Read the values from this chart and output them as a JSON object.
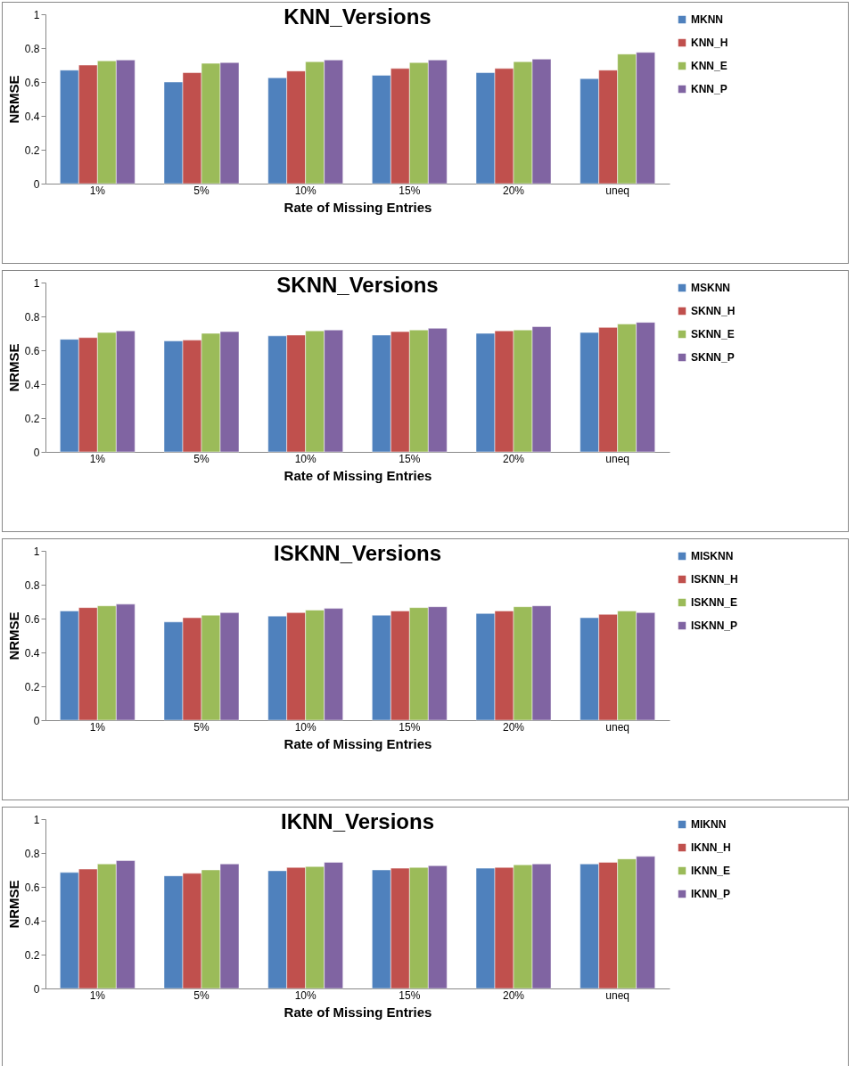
{
  "chart_data": [
    {
      "type": "bar",
      "title": "KNN_Versions",
      "xlabel": "Rate of Missing Entries",
      "ylabel": "NRMSE",
      "categories": [
        "1%",
        "5%",
        "10%",
        "15%",
        "20%",
        "uneq"
      ],
      "ylim": [
        0,
        1
      ],
      "yticks": [
        0,
        0.2,
        0.4,
        0.6,
        0.8,
        1
      ],
      "grid": false,
      "legend": "top right",
      "series": [
        {
          "name": "MKNN",
          "color": "#4f81bd",
          "values": [
            0.67,
            0.6,
            0.625,
            0.64,
            0.655,
            0.62
          ]
        },
        {
          "name": "KNN_H",
          "color": "#c0504d",
          "values": [
            0.7,
            0.655,
            0.665,
            0.68,
            0.68,
            0.67
          ]
        },
        {
          "name": "KNN_E",
          "color": "#9bbb59",
          "values": [
            0.725,
            0.71,
            0.72,
            0.715,
            0.72,
            0.765
          ]
        },
        {
          "name": "KNN_P",
          "color": "#8064a2",
          "values": [
            0.73,
            0.715,
            0.73,
            0.73,
            0.735,
            0.775
          ]
        }
      ]
    },
    {
      "type": "bar",
      "title": "SKNN_Versions",
      "xlabel": "Rate of Missing Entries",
      "ylabel": "NRMSE",
      "categories": [
        "1%",
        "5%",
        "10%",
        "15%",
        "20%",
        "uneq"
      ],
      "ylim": [
        0,
        1
      ],
      "yticks": [
        0,
        0.2,
        0.4,
        0.6,
        0.8,
        1
      ],
      "grid": false,
      "legend": "top right",
      "series": [
        {
          "name": "MSKNN",
          "color": "#4f81bd",
          "values": [
            0.665,
            0.655,
            0.685,
            0.69,
            0.7,
            0.705
          ]
        },
        {
          "name": "SKNN_H",
          "color": "#c0504d",
          "values": [
            0.675,
            0.66,
            0.69,
            0.71,
            0.715,
            0.735
          ]
        },
        {
          "name": "SKNN_E",
          "color": "#9bbb59",
          "values": [
            0.705,
            0.7,
            0.715,
            0.72,
            0.72,
            0.755
          ]
        },
        {
          "name": "SKNN_P",
          "color": "#8064a2",
          "values": [
            0.715,
            0.71,
            0.72,
            0.73,
            0.74,
            0.765
          ]
        }
      ]
    },
    {
      "type": "bar",
      "title": "ISKNN_Versions",
      "xlabel": "Rate of Missing Entries",
      "ylabel": "NRMSE",
      "categories": [
        "1%",
        "5%",
        "10%",
        "15%",
        "20%",
        "uneq"
      ],
      "ylim": [
        0,
        1
      ],
      "yticks": [
        0,
        0.2,
        0.4,
        0.6,
        0.8,
        1
      ],
      "grid": false,
      "legend": "top right",
      "series": [
        {
          "name": "MISKNN",
          "color": "#4f81bd",
          "values": [
            0.645,
            0.58,
            0.615,
            0.62,
            0.63,
            0.605
          ]
        },
        {
          "name": "ISKNN_H",
          "color": "#c0504d",
          "values": [
            0.665,
            0.605,
            0.635,
            0.645,
            0.645,
            0.625
          ]
        },
        {
          "name": "ISKNN_E",
          "color": "#9bbb59",
          "values": [
            0.675,
            0.62,
            0.65,
            0.665,
            0.67,
            0.645
          ]
        },
        {
          "name": "ISKNN_P",
          "color": "#8064a2",
          "values": [
            0.685,
            0.635,
            0.66,
            0.67,
            0.675,
            0.635
          ]
        }
      ]
    },
    {
      "type": "bar",
      "title": "IKNN_Versions",
      "xlabel": "Rate of Missing Entries",
      "ylabel": "NRMSE",
      "categories": [
        "1%",
        "5%",
        "10%",
        "15%",
        "20%",
        "uneq"
      ],
      "ylim": [
        0,
        1
      ],
      "yticks": [
        0,
        0.2,
        0.4,
        0.6,
        0.8,
        1
      ],
      "grid": false,
      "legend": "top right",
      "series": [
        {
          "name": "MIKNN",
          "color": "#4f81bd",
          "values": [
            0.685,
            0.665,
            0.695,
            0.7,
            0.71,
            0.735
          ]
        },
        {
          "name": "IKNN_H",
          "color": "#c0504d",
          "values": [
            0.705,
            0.68,
            0.715,
            0.71,
            0.715,
            0.745
          ]
        },
        {
          "name": "IKNN_E",
          "color": "#9bbb59",
          "values": [
            0.735,
            0.7,
            0.72,
            0.715,
            0.73,
            0.765
          ]
        },
        {
          "name": "IKNN_P",
          "color": "#8064a2",
          "values": [
            0.755,
            0.735,
            0.745,
            0.725,
            0.735,
            0.78
          ]
        }
      ]
    }
  ]
}
